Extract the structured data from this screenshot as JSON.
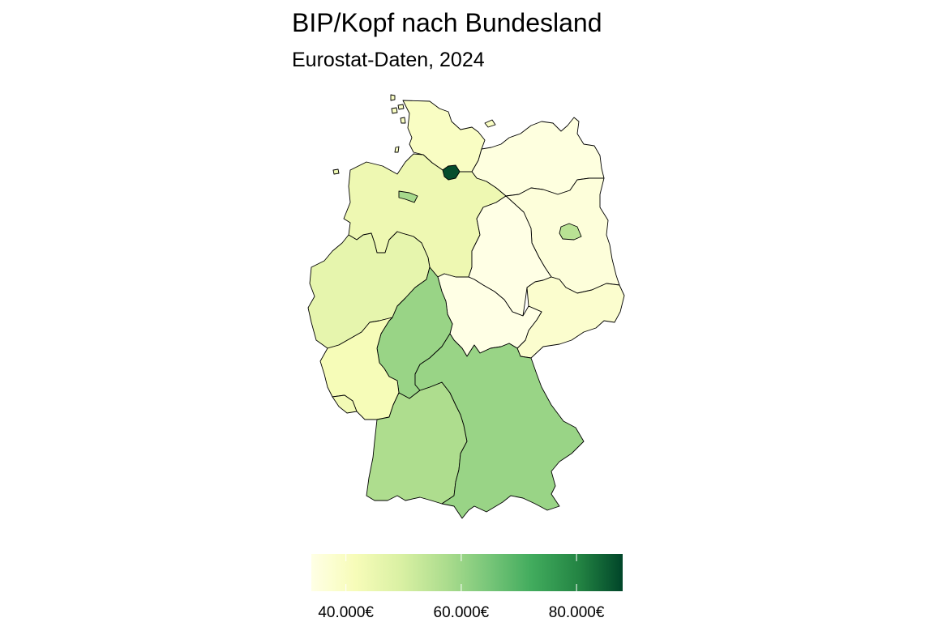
{
  "title": "BIP/Kopf nach Bundesland",
  "subtitle": "Eurostat-Daten, 2024",
  "colors": {
    "scale_low": "#ffffe5",
    "scale_mid1": "#f7fcb9",
    "scale_mid2": "#d9f0a3",
    "scale_mid3": "#addd8e",
    "scale_mid4": "#78c679",
    "scale_mid5": "#41ab5d",
    "scale_mid6": "#238443",
    "scale_high": "#004529",
    "border": "#000000"
  },
  "chart_data": {
    "type": "choropleth",
    "value_unit": "€",
    "regions": [
      {
        "name": "Schleswig-Holstein",
        "value": 40000
      },
      {
        "name": "Hamburg",
        "value": 87000
      },
      {
        "name": "Mecklenburg-Vorpommern",
        "value": 35000
      },
      {
        "name": "Bremen",
        "value": 58000
      },
      {
        "name": "Niedersachsen",
        "value": 44000
      },
      {
        "name": "Berlin",
        "value": 55000
      },
      {
        "name": "Brandenburg",
        "value": 36000
      },
      {
        "name": "Sachsen-Anhalt",
        "value": 34000
      },
      {
        "name": "Nordrhein-Westfalen",
        "value": 46000
      },
      {
        "name": "Sachsen",
        "value": 38000
      },
      {
        "name": "Thüringen",
        "value": 34000
      },
      {
        "name": "Hessen",
        "value": 60000
      },
      {
        "name": "Rheinland-Pfalz",
        "value": 42000
      },
      {
        "name": "Saarland",
        "value": 43000
      },
      {
        "name": "Baden-Württemberg",
        "value": 57000
      },
      {
        "name": "Bayern",
        "value": 60000
      }
    ],
    "legend": {
      "position": "bottom",
      "range": [
        34000,
        88000
      ],
      "ticks": [
        40000,
        60000,
        80000
      ],
      "tick_labels": [
        "40.000€",
        "60.000€",
        "80.000€"
      ]
    }
  }
}
